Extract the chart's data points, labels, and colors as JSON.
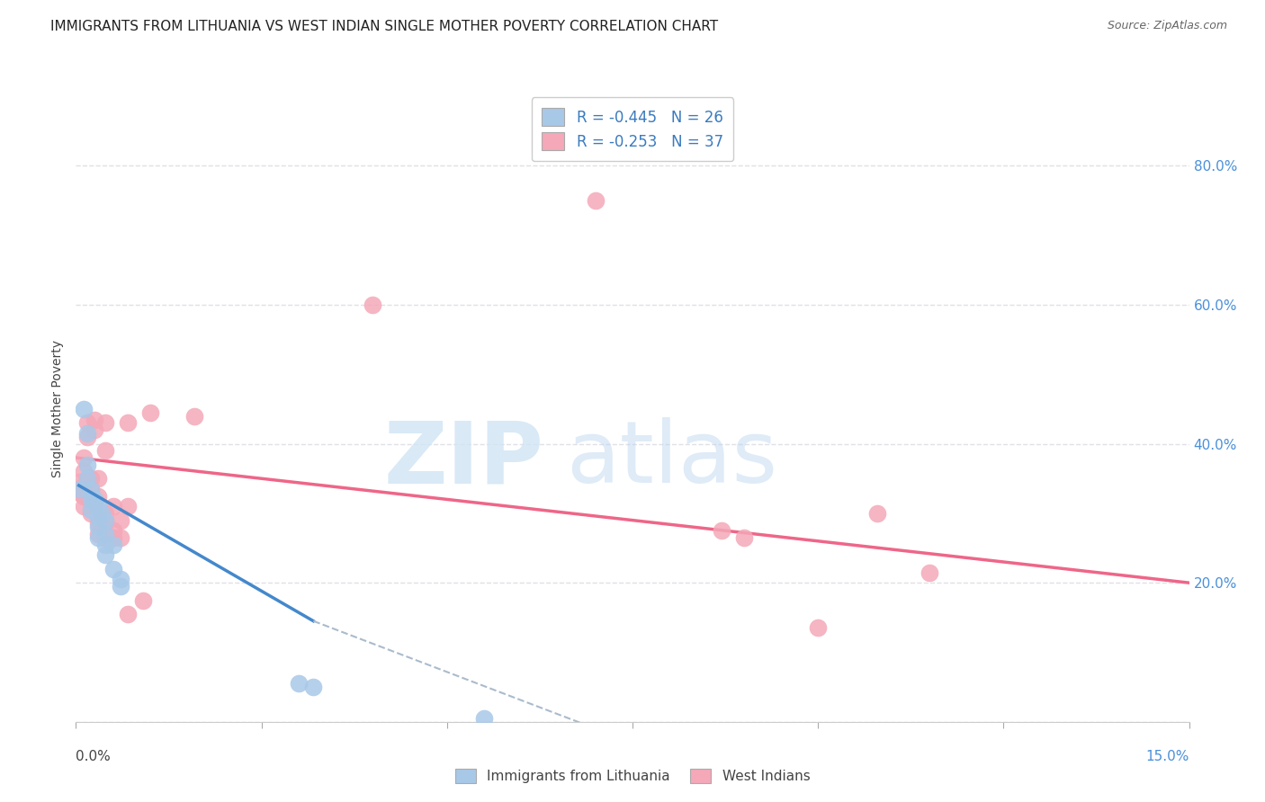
{
  "title": "IMMIGRANTS FROM LITHUANIA VS WEST INDIAN SINGLE MOTHER POVERTY CORRELATION CHART",
  "source": "Source: ZipAtlas.com",
  "ylabel": "Single Mother Poverty",
  "legend1_r": "-0.445",
  "legend1_n": "26",
  "legend2_r": "-0.253",
  "legend2_n": "37",
  "blue_color": "#a8c8e8",
  "pink_color": "#f4a8b8",
  "blue_line_color": "#4488cc",
  "pink_line_color": "#ee6688",
  "dashed_line_color": "#aabbcc",
  "xlim": [
    0,
    0.15
  ],
  "ylim": [
    0,
    0.9
  ],
  "background_color": "#ffffff",
  "grid_color": "#e0e0e8",
  "lithuania_points": [
    [
      0.0005,
      0.335
    ],
    [
      0.001,
      0.45
    ],
    [
      0.0015,
      0.415
    ],
    [
      0.0015,
      0.37
    ],
    [
      0.0015,
      0.35
    ],
    [
      0.002,
      0.335
    ],
    [
      0.002,
      0.32
    ],
    [
      0.002,
      0.305
    ],
    [
      0.0025,
      0.32
    ],
    [
      0.0025,
      0.315
    ],
    [
      0.003,
      0.31
    ],
    [
      0.003,
      0.295
    ],
    [
      0.003,
      0.28
    ],
    [
      0.0035,
      0.3
    ],
    [
      0.003,
      0.265
    ],
    [
      0.004,
      0.29
    ],
    [
      0.004,
      0.27
    ],
    [
      0.004,
      0.255
    ],
    [
      0.004,
      0.24
    ],
    [
      0.005,
      0.255
    ],
    [
      0.005,
      0.22
    ],
    [
      0.006,
      0.205
    ],
    [
      0.006,
      0.195
    ],
    [
      0.03,
      0.055
    ],
    [
      0.032,
      0.05
    ],
    [
      0.055,
      0.005
    ]
  ],
  "westindian_points": [
    [
      0.0005,
      0.345
    ],
    [
      0.0005,
      0.33
    ],
    [
      0.001,
      0.38
    ],
    [
      0.001,
      0.36
    ],
    [
      0.001,
      0.34
    ],
    [
      0.001,
      0.325
    ],
    [
      0.001,
      0.31
    ],
    [
      0.0015,
      0.43
    ],
    [
      0.0015,
      0.41
    ],
    [
      0.002,
      0.35
    ],
    [
      0.002,
      0.335
    ],
    [
      0.002,
      0.315
    ],
    [
      0.002,
      0.3
    ],
    [
      0.0025,
      0.435
    ],
    [
      0.0025,
      0.42
    ],
    [
      0.003,
      0.35
    ],
    [
      0.003,
      0.325
    ],
    [
      0.003,
      0.305
    ],
    [
      0.003,
      0.285
    ],
    [
      0.003,
      0.27
    ],
    [
      0.004,
      0.43
    ],
    [
      0.004,
      0.39
    ],
    [
      0.004,
      0.3
    ],
    [
      0.004,
      0.285
    ],
    [
      0.004,
      0.265
    ],
    [
      0.005,
      0.31
    ],
    [
      0.005,
      0.275
    ],
    [
      0.005,
      0.265
    ],
    [
      0.006,
      0.29
    ],
    [
      0.006,
      0.265
    ],
    [
      0.007,
      0.43
    ],
    [
      0.007,
      0.31
    ],
    [
      0.04,
      0.6
    ],
    [
      0.007,
      0.155
    ],
    [
      0.009,
      0.175
    ],
    [
      0.07,
      0.75
    ],
    [
      0.01,
      0.445
    ],
    [
      0.016,
      0.44
    ],
    [
      0.087,
      0.275
    ],
    [
      0.09,
      0.265
    ],
    [
      0.1,
      0.135
    ],
    [
      0.108,
      0.3
    ],
    [
      0.115,
      0.215
    ]
  ],
  "pink_line_x": [
    0.0,
    0.15
  ],
  "pink_line_y": [
    0.38,
    0.2
  ],
  "blue_line_x": [
    0.0004,
    0.032
  ],
  "blue_line_y": [
    0.34,
    0.145
  ],
  "dashed_line_x": [
    0.032,
    0.075
  ],
  "dashed_line_y": [
    0.145,
    -0.03
  ]
}
